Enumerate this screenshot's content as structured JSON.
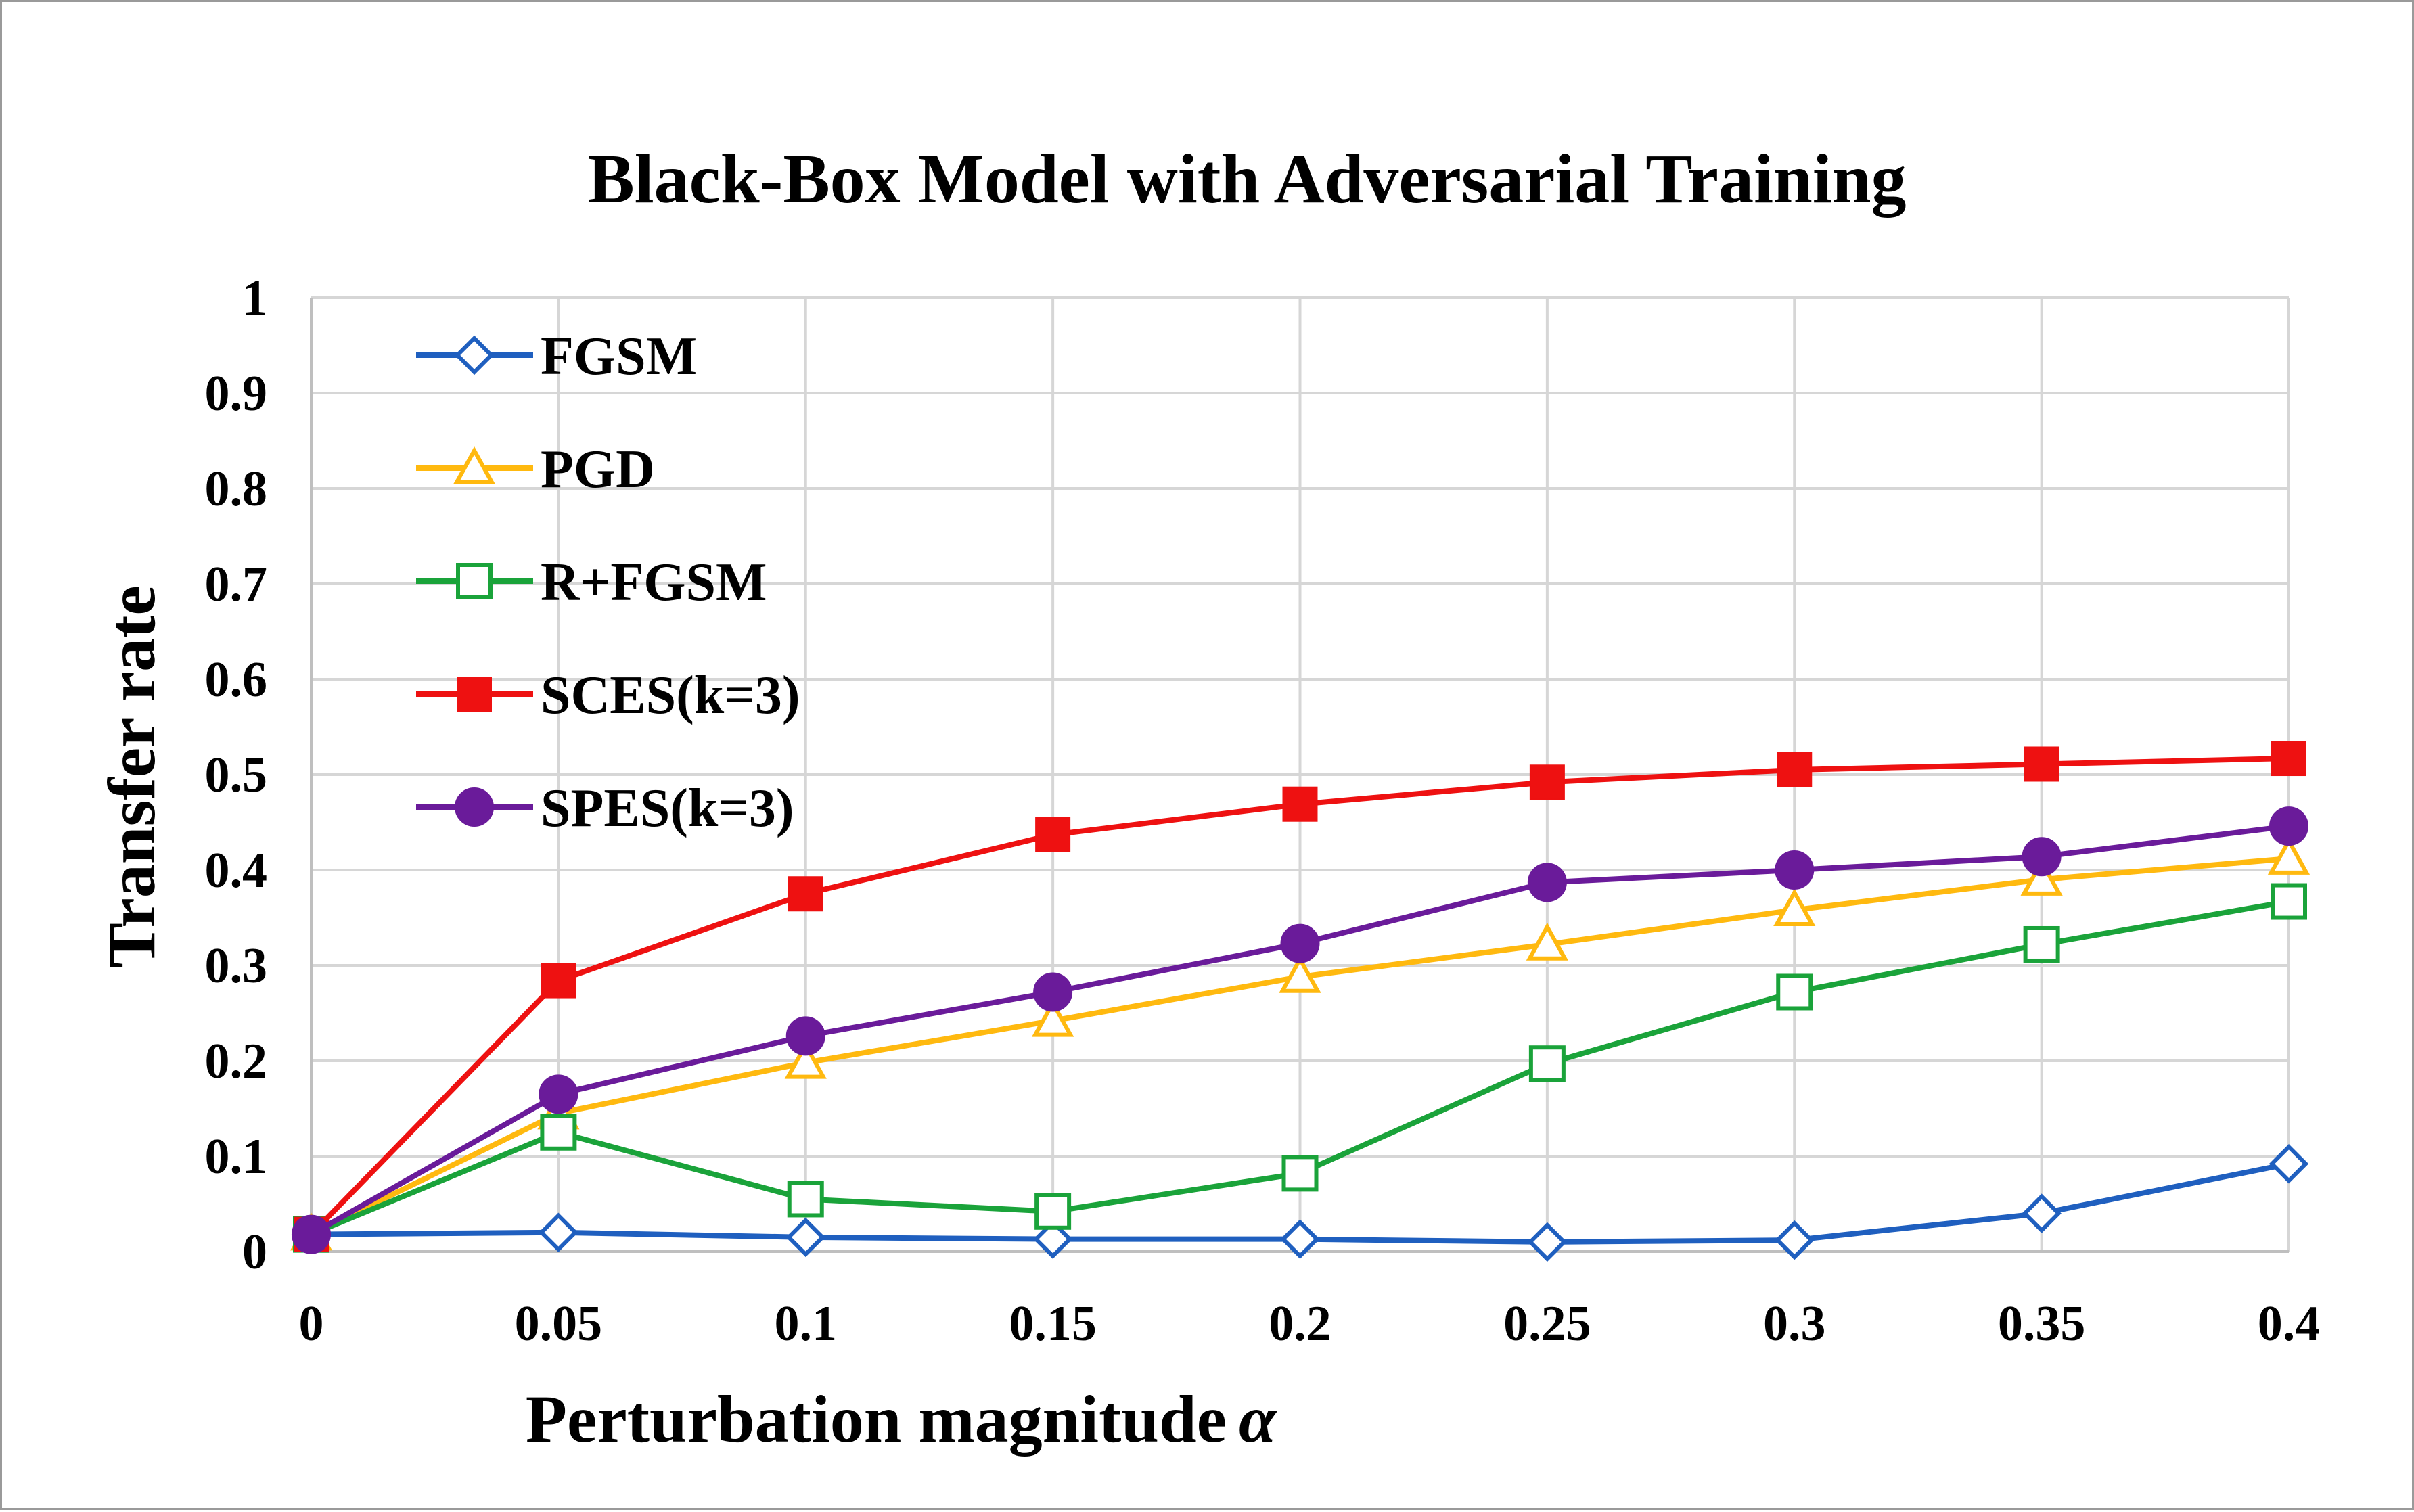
{
  "chart_data": {
    "type": "line",
    "title": "Black-Box Model with Adversarial  Training",
    "xlabel": "Perturbation  magnitude",
    "xlabel_symbol": "α",
    "ylabel": "Transfer  rate",
    "x": [
      0,
      0.05,
      0.1,
      0.15,
      0.2,
      0.25,
      0.3,
      0.35,
      0.4
    ],
    "x_tick_labels": [
      "0",
      "0.05",
      "0.1",
      "0.15",
      "0.2",
      "0.25",
      "0.3",
      "0.35",
      "0.4"
    ],
    "y_tick_labels": [
      "0",
      "0.1",
      "0.2",
      "0.3",
      "0.4",
      "0.5",
      "0.6",
      "0.7",
      "0.8",
      "0.9",
      "1"
    ],
    "ylim": [
      0,
      1
    ],
    "xlim": [
      0,
      0.4
    ],
    "grid": true,
    "legend_position": "top-left",
    "series": [
      {
        "name": "FGSM",
        "color": "#1f5fbf",
        "marker": "diamond-open",
        "values": [
          0.018,
          0.02,
          0.015,
          0.013,
          0.013,
          0.01,
          0.012,
          0.04,
          0.092
        ]
      },
      {
        "name": "PGD",
        "color": "#ffb90f",
        "marker": "triangle-open",
        "values": [
          0.018,
          0.145,
          0.198,
          0.242,
          0.288,
          0.322,
          0.358,
          0.39,
          0.412
        ]
      },
      {
        "name": "R+FGSM",
        "color": "#1aa33a",
        "marker": "square-open",
        "values": [
          0.018,
          0.125,
          0.055,
          0.042,
          0.082,
          0.197,
          0.272,
          0.322,
          0.367
        ]
      },
      {
        "name": "SCES(k=3)",
        "color": "#ee1111",
        "marker": "square-filled",
        "values": [
          0.018,
          0.284,
          0.375,
          0.437,
          0.469,
          0.492,
          0.505,
          0.511,
          0.517
        ]
      },
      {
        "name": "SPES(k=3)",
        "color": "#6a1b9a",
        "marker": "circle-filled",
        "values": [
          0.018,
          0.165,
          0.226,
          0.272,
          0.323,
          0.387,
          0.4,
          0.414,
          0.446
        ]
      }
    ]
  }
}
